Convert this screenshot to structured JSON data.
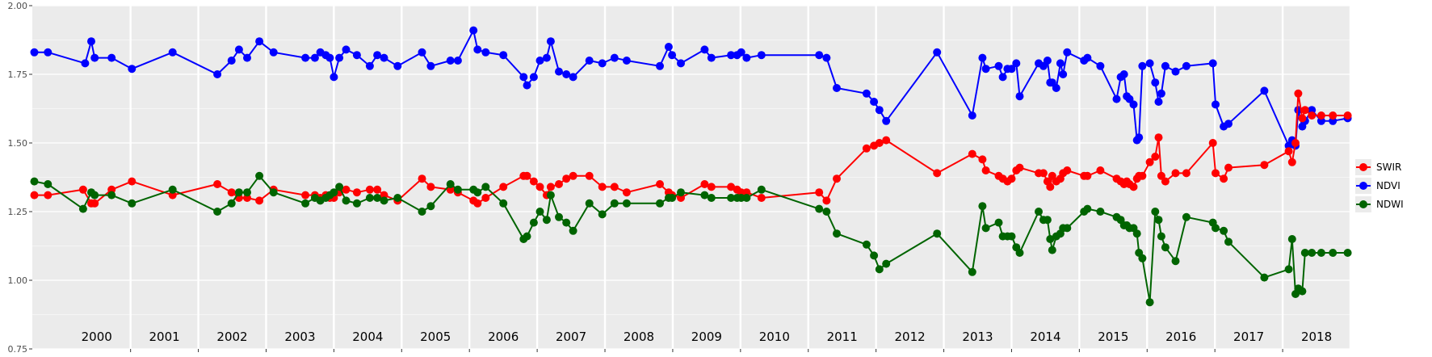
{
  "chart_data": {
    "type": "line",
    "title": "",
    "xlabel": "",
    "ylabel": "",
    "xlim": [
      1999.55,
      2019.0
    ],
    "ylim": [
      0.75,
      2.0
    ],
    "y_ticks": [
      "0.75",
      "1.00",
      "1.25",
      "1.50",
      "1.75",
      "2.00"
    ],
    "y_tick_values": [
      0.75,
      1.0,
      1.25,
      1.5,
      1.75,
      2.0
    ],
    "year_labels": [
      "2000",
      "2001",
      "2002",
      "2003",
      "2004",
      "2005",
      "2006",
      "2007",
      "2008",
      "2009",
      "2010",
      "2011",
      "2012",
      "2013",
      "2014",
      "2015",
      "2016",
      "2017",
      "2018"
    ],
    "grid": true,
    "legend_position": "right",
    "colors": {
      "panel": "#ebebeb",
      "grid": "#ffffff",
      "axis_text": "#4d4d4d"
    },
    "series": [
      {
        "name": "NDVI",
        "color": "#0000ff",
        "x": [
          1999.58,
          1999.78,
          2000.33,
          2000.42,
          2000.47,
          2000.72,
          2001.02,
          2001.62,
          2002.28,
          2002.49,
          2002.6,
          2002.72,
          2002.9,
          2003.11,
          2003.58,
          2003.72,
          2003.8,
          2003.88,
          2003.94,
          2004.0,
          2004.08,
          2004.18,
          2004.34,
          2004.53,
          2004.64,
          2004.74,
          2004.94,
          2005.3,
          2005.43,
          2005.72,
          2005.83,
          2006.06,
          2006.12,
          2006.24,
          2006.5,
          2006.8,
          2006.85,
          2006.95,
          2007.04,
          2007.14,
          2007.2,
          2007.32,
          2007.43,
          2007.53,
          2007.77,
          2007.96,
          2008.14,
          2008.32,
          2008.81,
          2008.94,
          2008.99,
          2009.12,
          2009.47,
          2009.57,
          2009.86,
          2009.95,
          2010.01,
          2010.09,
          2010.31,
          2011.16,
          2011.27,
          2011.42,
          2011.86,
          2011.97,
          2012.05,
          2012.15,
          2012.9,
          2013.42,
          2013.57,
          2013.62,
          2013.81,
          2013.87,
          2013.94,
          2014.0,
          2014.07,
          2014.12,
          2014.4,
          2014.47,
          2014.53,
          2014.57,
          2014.6,
          2014.66,
          2014.72,
          2014.76,
          2014.82,
          2015.07,
          2015.12,
          2015.31,
          2015.55,
          2015.61,
          2015.66,
          2015.7,
          2015.74,
          2015.8,
          2015.85,
          2015.88,
          2015.93,
          2016.04,
          2016.12,
          2016.17,
          2016.21,
          2016.27,
          2016.42,
          2016.58,
          2016.97,
          2017.01,
          2017.13,
          2017.2,
          2017.73,
          2018.09,
          2018.14,
          2018.19,
          2018.23,
          2018.29,
          2018.33,
          2018.43,
          2018.57,
          2018.74,
          2018.96
        ],
        "y": [
          1.83,
          1.83,
          1.79,
          1.87,
          1.81,
          1.81,
          1.77,
          1.83,
          1.75,
          1.8,
          1.84,
          1.81,
          1.87,
          1.83,
          1.81,
          1.81,
          1.83,
          1.82,
          1.81,
          1.74,
          1.81,
          1.84,
          1.82,
          1.78,
          1.82,
          1.81,
          1.78,
          1.83,
          1.78,
          1.8,
          1.8,
          1.91,
          1.84,
          1.83,
          1.82,
          1.74,
          1.71,
          1.74,
          1.8,
          1.81,
          1.87,
          1.76,
          1.75,
          1.74,
          1.8,
          1.79,
          1.81,
          1.8,
          1.78,
          1.85,
          1.82,
          1.79,
          1.84,
          1.81,
          1.82,
          1.82,
          1.83,
          1.81,
          1.82,
          1.82,
          1.81,
          1.7,
          1.68,
          1.65,
          1.62,
          1.58,
          1.83,
          1.6,
          1.81,
          1.77,
          1.78,
          1.74,
          1.77,
          1.77,
          1.79,
          1.67,
          1.79,
          1.78,
          1.8,
          1.72,
          1.72,
          1.7,
          1.79,
          1.75,
          1.83,
          1.8,
          1.81,
          1.78,
          1.66,
          1.74,
          1.75,
          1.67,
          1.66,
          1.64,
          1.51,
          1.52,
          1.78,
          1.79,
          1.72,
          1.65,
          1.68,
          1.78,
          1.76,
          1.78,
          1.79,
          1.64,
          1.56,
          1.57,
          1.69,
          1.49,
          1.51,
          1.49,
          1.62,
          1.56,
          1.58,
          1.62,
          1.58,
          1.58,
          1.59
        ]
      },
      {
        "name": "SWIR",
        "color": "#ff0000",
        "x": [
          1999.58,
          1999.78,
          2000.3,
          2000.42,
          2000.47,
          2000.72,
          2001.02,
          2001.62,
          2002.28,
          2002.49,
          2002.6,
          2002.72,
          2002.9,
          2003.11,
          2003.58,
          2003.72,
          2003.8,
          2003.88,
          2003.94,
          2004.0,
          2004.08,
          2004.18,
          2004.34,
          2004.53,
          2004.64,
          2004.74,
          2004.94,
          2005.3,
          2005.43,
          2005.72,
          2005.83,
          2006.06,
          2006.12,
          2006.24,
          2006.5,
          2006.8,
          2006.85,
          2006.95,
          2007.04,
          2007.14,
          2007.2,
          2007.32,
          2007.43,
          2007.53,
          2007.77,
          2007.96,
          2008.14,
          2008.32,
          2008.81,
          2008.94,
          2008.99,
          2009.12,
          2009.47,
          2009.57,
          2009.86,
          2009.95,
          2010.01,
          2010.09,
          2010.31,
          2011.16,
          2011.27,
          2011.42,
          2011.86,
          2011.97,
          2012.05,
          2012.15,
          2012.9,
          2013.42,
          2013.57,
          2013.62,
          2013.81,
          2013.87,
          2013.94,
          2014.0,
          2014.07,
          2014.12,
          2014.4,
          2014.47,
          2014.53,
          2014.57,
          2014.6,
          2014.66,
          2014.72,
          2014.76,
          2014.82,
          2015.07,
          2015.12,
          2015.31,
          2015.55,
          2015.61,
          2015.66,
          2015.7,
          2015.74,
          2015.8,
          2015.85,
          2015.88,
          2015.93,
          2016.04,
          2016.12,
          2016.17,
          2016.21,
          2016.27,
          2016.42,
          2016.58,
          2016.97,
          2017.01,
          2017.13,
          2017.2,
          2017.73,
          2018.09,
          2018.14,
          2018.19,
          2018.23,
          2018.29,
          2018.33,
          2018.43,
          2018.57,
          2018.74,
          2018.96
        ],
        "y": [
          1.31,
          1.31,
          1.33,
          1.28,
          1.28,
          1.33,
          1.36,
          1.31,
          1.35,
          1.32,
          1.3,
          1.3,
          1.29,
          1.33,
          1.31,
          1.31,
          1.3,
          1.31,
          1.3,
          1.3,
          1.32,
          1.33,
          1.32,
          1.33,
          1.33,
          1.31,
          1.29,
          1.37,
          1.34,
          1.33,
          1.32,
          1.29,
          1.28,
          1.3,
          1.34,
          1.38,
          1.38,
          1.36,
          1.34,
          1.31,
          1.34,
          1.35,
          1.37,
          1.38,
          1.38,
          1.34,
          1.34,
          1.32,
          1.35,
          1.32,
          1.31,
          1.3,
          1.35,
          1.34,
          1.34,
          1.33,
          1.32,
          1.32,
          1.3,
          1.32,
          1.29,
          1.37,
          1.48,
          1.49,
          1.5,
          1.51,
          1.39,
          1.46,
          1.44,
          1.4,
          1.38,
          1.37,
          1.36,
          1.37,
          1.4,
          1.41,
          1.39,
          1.39,
          1.36,
          1.34,
          1.38,
          1.36,
          1.37,
          1.39,
          1.4,
          1.38,
          1.38,
          1.4,
          1.37,
          1.36,
          1.35,
          1.36,
          1.35,
          1.34,
          1.37,
          1.38,
          1.38,
          1.43,
          1.45,
          1.52,
          1.38,
          1.36,
          1.39,
          1.39,
          1.5,
          1.39,
          1.37,
          1.41,
          1.42,
          1.47,
          1.43,
          1.5,
          1.68,
          1.59,
          1.62,
          1.6,
          1.6,
          1.6,
          1.6
        ]
      },
      {
        "name": "NDWI",
        "color": "#006400",
        "x": [
          1999.58,
          1999.78,
          2000.3,
          2000.42,
          2000.47,
          2000.72,
          2001.02,
          2001.62,
          2002.28,
          2002.49,
          2002.6,
          2002.72,
          2002.9,
          2003.11,
          2003.58,
          2003.72,
          2003.8,
          2003.88,
          2003.94,
          2004.0,
          2004.08,
          2004.18,
          2004.34,
          2004.53,
          2004.64,
          2004.74,
          2004.94,
          2005.3,
          2005.43,
          2005.72,
          2005.83,
          2006.06,
          2006.12,
          2006.24,
          2006.5,
          2006.8,
          2006.85,
          2006.95,
          2007.04,
          2007.14,
          2007.2,
          2007.32,
          2007.43,
          2007.53,
          2007.77,
          2007.96,
          2008.14,
          2008.32,
          2008.81,
          2008.94,
          2008.99,
          2009.12,
          2009.47,
          2009.57,
          2009.86,
          2009.95,
          2010.01,
          2010.09,
          2010.31,
          2011.16,
          2011.27,
          2011.42,
          2011.86,
          2011.97,
          2012.05,
          2012.15,
          2012.9,
          2013.42,
          2013.57,
          2013.62,
          2013.81,
          2013.87,
          2013.94,
          2014.0,
          2014.07,
          2014.12,
          2014.4,
          2014.47,
          2014.53,
          2014.57,
          2014.6,
          2014.66,
          2014.72,
          2014.76,
          2014.82,
          2015.07,
          2015.12,
          2015.31,
          2015.55,
          2015.61,
          2015.66,
          2015.7,
          2015.74,
          2015.8,
          2015.85,
          2015.88,
          2015.93,
          2016.04,
          2016.12,
          2016.17,
          2016.21,
          2016.27,
          2016.42,
          2016.58,
          2016.97,
          2017.01,
          2017.13,
          2017.2,
          2017.73,
          2018.09,
          2018.14,
          2018.19,
          2018.23,
          2018.29,
          2018.33,
          2018.43,
          2018.57,
          2018.74,
          2018.96
        ],
        "y": [
          1.36,
          1.35,
          1.26,
          1.32,
          1.31,
          1.31,
          1.28,
          1.33,
          1.25,
          1.28,
          1.32,
          1.32,
          1.38,
          1.32,
          1.28,
          1.3,
          1.29,
          1.3,
          1.31,
          1.32,
          1.34,
          1.29,
          1.28,
          1.3,
          1.3,
          1.29,
          1.3,
          1.25,
          1.27,
          1.35,
          1.33,
          1.33,
          1.32,
          1.34,
          1.28,
          1.15,
          1.16,
          1.21,
          1.25,
          1.22,
          1.31,
          1.23,
          1.21,
          1.18,
          1.28,
          1.24,
          1.28,
          1.28,
          1.28,
          1.3,
          1.3,
          1.32,
          1.31,
          1.3,
          1.3,
          1.3,
          1.3,
          1.3,
          1.33,
          1.26,
          1.25,
          1.17,
          1.13,
          1.09,
          1.04,
          1.06,
          1.17,
          1.03,
          1.27,
          1.19,
          1.21,
          1.16,
          1.16,
          1.16,
          1.12,
          1.1,
          1.25,
          1.22,
          1.22,
          1.15,
          1.11,
          1.16,
          1.17,
          1.19,
          1.19,
          1.25,
          1.26,
          1.25,
          1.23,
          1.22,
          1.2,
          1.2,
          1.19,
          1.19,
          1.17,
          1.1,
          1.08,
          0.92,
          1.25,
          1.22,
          1.16,
          1.12,
          1.07,
          1.23,
          1.21,
          1.19,
          1.18,
          1.14,
          1.01,
          1.04,
          1.15,
          0.95,
          0.97,
          0.96,
          1.1,
          1.1,
          1.1,
          1.1,
          1.1
        ]
      }
    ]
  }
}
